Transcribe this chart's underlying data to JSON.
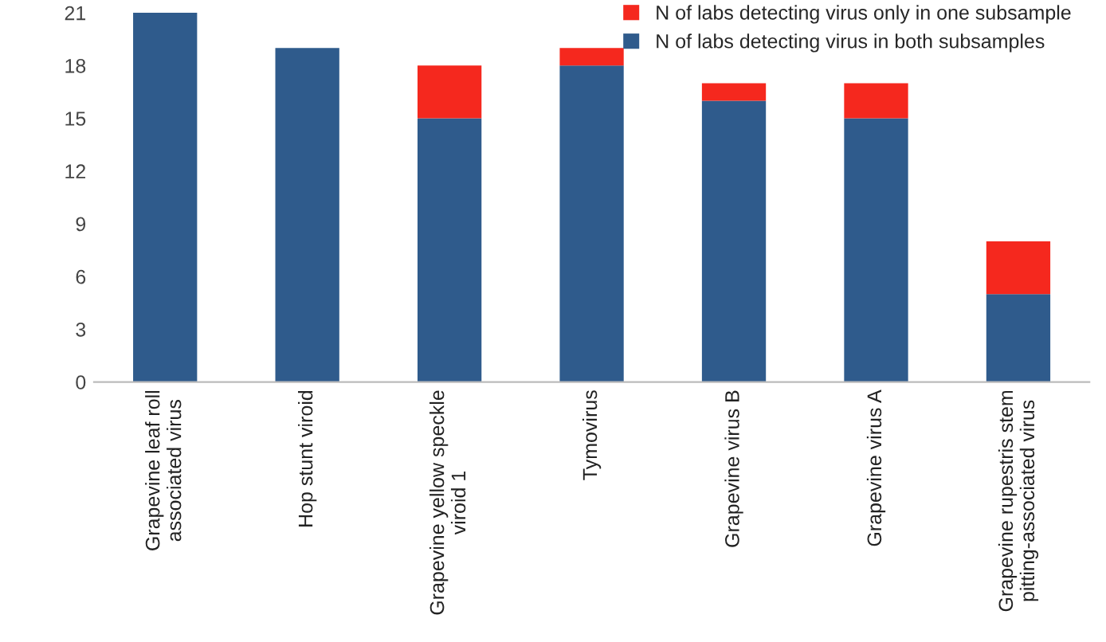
{
  "chart_data": {
    "type": "bar",
    "stacked": true,
    "categories": [
      "Grapevine leaf roll\nassociated virus",
      "Hop stunt viroid",
      "Grapevine yellow speckle\nviroid 1",
      "Tymovirus",
      "Grapevine virus B",
      "Grapevine virus A",
      "Grapevine rupestris stem\npitting-associated virus"
    ],
    "series": [
      {
        "name": "N of labs detecting virus in both subsamples",
        "color": "#2f5b8c",
        "values": [
          21,
          19,
          15,
          18,
          16,
          15,
          5
        ]
      },
      {
        "name": "N of labs detecting virus only in one subsample",
        "color": "#f5281e",
        "values": [
          null,
          null,
          3,
          1,
          1,
          2,
          3
        ]
      }
    ],
    "ylim": [
      0,
      21
    ],
    "yticks": [
      0,
      3,
      6,
      9,
      12,
      15,
      18,
      21
    ],
    "grid": false,
    "legend": "top right"
  }
}
